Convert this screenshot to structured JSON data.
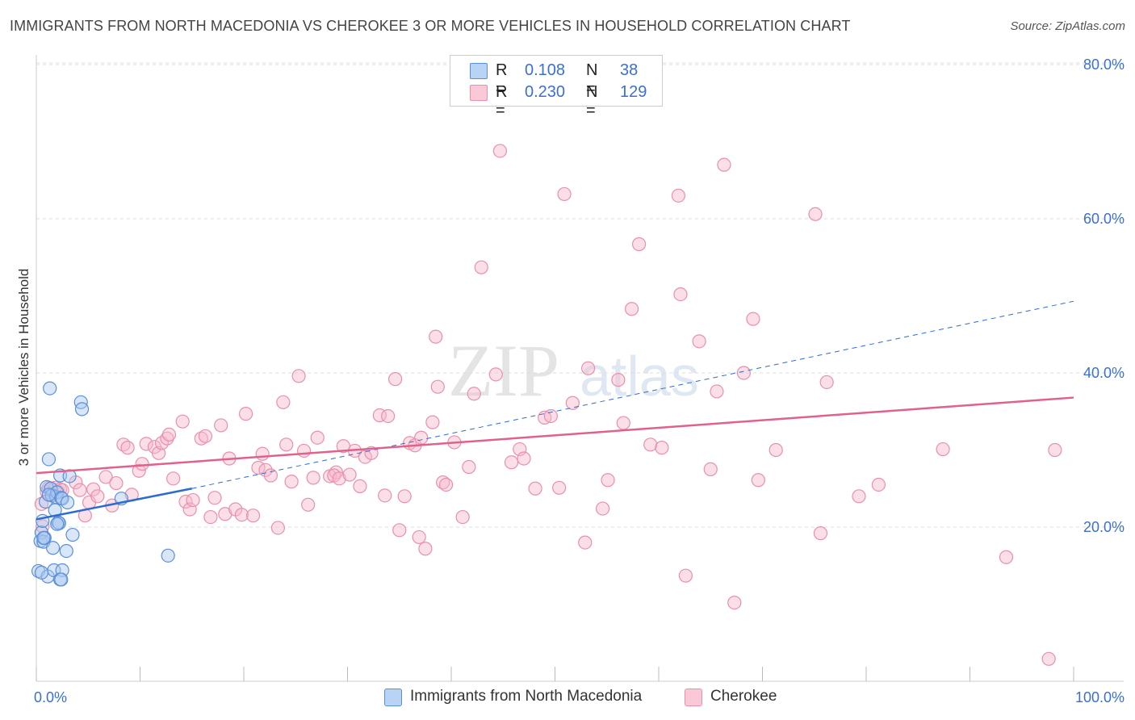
{
  "title": "IMMIGRANTS FROM NORTH MACEDONIA VS CHEROKEE 3 OR MORE VEHICLES IN HOUSEHOLD CORRELATION CHART",
  "source": "Source: ZipAtlas.com",
  "watermark": {
    "zip": "ZIP",
    "atlas": "atlas"
  },
  "legend": {
    "r_label": "R =",
    "n_label": "N =",
    "rows": [
      {
        "series": "Immigrants from North Macedonia",
        "r": "0.108",
        "n": "38"
      },
      {
        "series": "Cherokee",
        "r": "0.230",
        "n": "129"
      }
    ]
  },
  "colors": {
    "blue_fill": "#a9c8f0",
    "blue_stroke": "#5a8fd8",
    "blue_line": "#2c6cd0",
    "pink_fill": "#f7b8cb",
    "pink_stroke": "#e890ab",
    "pink_line": "#e0628c",
    "axis_text": "#3a6fd8",
    "grid": "#dddddd"
  },
  "chart_data": {
    "type": "scatter",
    "xlabel": "",
    "ylabel": "3 or more Vehicles in Household",
    "xlim": [
      0,
      100
    ],
    "ylim": [
      0,
      82
    ],
    "x_tick_labels": [
      {
        "value": 0,
        "label": "0.0%"
      },
      {
        "value": 100,
        "label": "100.0%"
      }
    ],
    "y_tick_labels": [
      {
        "value": 20,
        "label": "20.0%"
      },
      {
        "value": 40,
        "label": "40.0%"
      },
      {
        "value": 60,
        "label": "60.0%"
      },
      {
        "value": 80,
        "label": "80.0%"
      }
    ],
    "x_minor_ticks": [
      0,
      10,
      20,
      30,
      40,
      50,
      60,
      70,
      80,
      90,
      100
    ],
    "y_gridlines": [
      20,
      40,
      60,
      80
    ],
    "series": [
      {
        "name": "Immigrants from North Macedonia",
        "color_key": "blue",
        "trend": {
          "x0": 0,
          "y0": 21.0,
          "x1": 15,
          "y1": 25.0,
          "dashed_to_x": 100,
          "dashed_to_y": 49.3
        },
        "points": [
          [
            0.2,
            14.3
          ],
          [
            0.4,
            18.2
          ],
          [
            0.5,
            19.3
          ],
          [
            0.6,
            20.8
          ],
          [
            0.7,
            18.1
          ],
          [
            0.8,
            18.6
          ],
          [
            0.9,
            23.3
          ],
          [
            1.0,
            25.2
          ],
          [
            1.1,
            13.6
          ],
          [
            1.2,
            28.8
          ],
          [
            1.3,
            38.0
          ],
          [
            1.4,
            25.0
          ],
          [
            1.5,
            24.1
          ],
          [
            1.6,
            17.3
          ],
          [
            1.7,
            14.4
          ],
          [
            1.8,
            22.2
          ],
          [
            1.9,
            23.9
          ],
          [
            2.0,
            24.5
          ],
          [
            2.1,
            20.6
          ],
          [
            2.2,
            20.5
          ],
          [
            2.3,
            26.7
          ],
          [
            2.4,
            23.8
          ],
          [
            2.5,
            14.4
          ],
          [
            2.3,
            13.2
          ],
          [
            2.4,
            13.2
          ],
          [
            2.5,
            23.7
          ],
          [
            2.9,
            16.9
          ],
          [
            3.0,
            23.2
          ],
          [
            3.2,
            26.6
          ],
          [
            3.5,
            19.0
          ],
          [
            4.3,
            36.2
          ],
          [
            4.4,
            35.3
          ],
          [
            8.2,
            23.7
          ],
          [
            12.7,
            16.3
          ],
          [
            1.2,
            24.2
          ],
          [
            2.0,
            20.4
          ],
          [
            0.7,
            18.6
          ],
          [
            0.5,
            14.1
          ]
        ]
      },
      {
        "name": "Cherokee",
        "color_key": "pink",
        "trend": {
          "x0": 0,
          "y0": 27.0,
          "x1": 100,
          "y1": 36.8
        },
        "points": [
          [
            0.5,
            23.0
          ],
          [
            0.6,
            20.1
          ],
          [
            1.0,
            24.6
          ],
          [
            1.2,
            25.1
          ],
          [
            1.5,
            24.2
          ],
          [
            1.8,
            25.1
          ],
          [
            2.1,
            24.6
          ],
          [
            2.3,
            24.9
          ],
          [
            2.5,
            24.8
          ],
          [
            3.8,
            25.8
          ],
          [
            4.2,
            24.8
          ],
          [
            4.7,
            21.5
          ],
          [
            5.1,
            23.2
          ],
          [
            5.5,
            24.9
          ],
          [
            5.9,
            24.0
          ],
          [
            6.7,
            26.5
          ],
          [
            7.3,
            22.8
          ],
          [
            7.7,
            25.7
          ],
          [
            8.4,
            30.7
          ],
          [
            8.8,
            30.3
          ],
          [
            9.2,
            24.2
          ],
          [
            9.9,
            27.3
          ],
          [
            10.2,
            28.2
          ],
          [
            10.6,
            30.8
          ],
          [
            11.4,
            30.4
          ],
          [
            11.8,
            29.6
          ],
          [
            12.1,
            30.9
          ],
          [
            12.6,
            31.5
          ],
          [
            12.8,
            32.0
          ],
          [
            13.2,
            26.3
          ],
          [
            14.1,
            33.7
          ],
          [
            14.4,
            23.3
          ],
          [
            14.8,
            22.3
          ],
          [
            15.1,
            23.5
          ],
          [
            15.9,
            31.5
          ],
          [
            16.3,
            31.8
          ],
          [
            16.8,
            21.3
          ],
          [
            17.2,
            23.8
          ],
          [
            17.8,
            33.2
          ],
          [
            18.2,
            21.7
          ],
          [
            18.6,
            28.9
          ],
          [
            19.2,
            22.3
          ],
          [
            19.8,
            21.6
          ],
          [
            20.2,
            34.7
          ],
          [
            20.9,
            21.5
          ],
          [
            21.4,
            27.7
          ],
          [
            21.8,
            29.5
          ],
          [
            22.1,
            27.4
          ],
          [
            22.6,
            26.7
          ],
          [
            23.3,
            19.9
          ],
          [
            23.8,
            36.2
          ],
          [
            24.1,
            30.7
          ],
          [
            24.6,
            25.9
          ],
          [
            25.3,
            39.6
          ],
          [
            25.8,
            29.9
          ],
          [
            26.2,
            22.9
          ],
          [
            26.7,
            26.4
          ],
          [
            27.1,
            31.6
          ],
          [
            28.3,
            26.6
          ],
          [
            28.9,
            27.1
          ],
          [
            28.7,
            26.7
          ],
          [
            29.2,
            26.3
          ],
          [
            29.6,
            30.5
          ],
          [
            30.2,
            26.8
          ],
          [
            30.7,
            29.9
          ],
          [
            31.2,
            25.3
          ],
          [
            31.7,
            29.1
          ],
          [
            32.3,
            29.6
          ],
          [
            33.1,
            34.5
          ],
          [
            33.6,
            24.1
          ],
          [
            33.9,
            34.4
          ],
          [
            34.6,
            39.2
          ],
          [
            35.0,
            19.6
          ],
          [
            35.5,
            24.0
          ],
          [
            36.0,
            30.9
          ],
          [
            36.5,
            30.6
          ],
          [
            37.1,
            31.6
          ],
          [
            36.9,
            18.7
          ],
          [
            37.5,
            17.2
          ],
          [
            38.2,
            33.6
          ],
          [
            38.7,
            38.2
          ],
          [
            39.2,
            25.8
          ],
          [
            39.5,
            25.5
          ],
          [
            38.5,
            44.7
          ],
          [
            40.3,
            31.0
          ],
          [
            41.1,
            21.3
          ],
          [
            41.7,
            27.8
          ],
          [
            42.2,
            37.3
          ],
          [
            42.9,
            53.7
          ],
          [
            44.3,
            39.8
          ],
          [
            44.7,
            68.8
          ],
          [
            45.8,
            28.4
          ],
          [
            46.6,
            30.1
          ],
          [
            47.0,
            28.9
          ],
          [
            48.1,
            25.0
          ],
          [
            49.0,
            34.2
          ],
          [
            49.6,
            34.4
          ],
          [
            50.4,
            25.1
          ],
          [
            50.9,
            63.2
          ],
          [
            51.7,
            36.1
          ],
          [
            52.9,
            18.0
          ],
          [
            53.2,
            40.6
          ],
          [
            54.6,
            22.4
          ],
          [
            55.1,
            26.1
          ],
          [
            56.1,
            39.1
          ],
          [
            56.6,
            33.5
          ],
          [
            57.4,
            48.3
          ],
          [
            58.1,
            56.7
          ],
          [
            59.2,
            30.7
          ],
          [
            60.3,
            30.3
          ],
          [
            62.1,
            50.2
          ],
          [
            62.6,
            13.7
          ],
          [
            63.9,
            44.1
          ],
          [
            65.0,
            27.5
          ],
          [
            65.6,
            37.6
          ],
          [
            66.3,
            67.0
          ],
          [
            67.3,
            10.2
          ],
          [
            68.2,
            40.0
          ],
          [
            69.1,
            47.0
          ],
          [
            69.6,
            26.1
          ],
          [
            71.3,
            30.0
          ],
          [
            75.1,
            60.6
          ],
          [
            75.6,
            19.2
          ],
          [
            76.2,
            38.8
          ],
          [
            79.3,
            24.0
          ],
          [
            81.2,
            25.5
          ],
          [
            87.4,
            30.1
          ],
          [
            93.5,
            16.1
          ],
          [
            97.6,
            2.9
          ],
          [
            98.2,
            30.0
          ],
          [
            61.9,
            63.0
          ]
        ]
      }
    ]
  }
}
